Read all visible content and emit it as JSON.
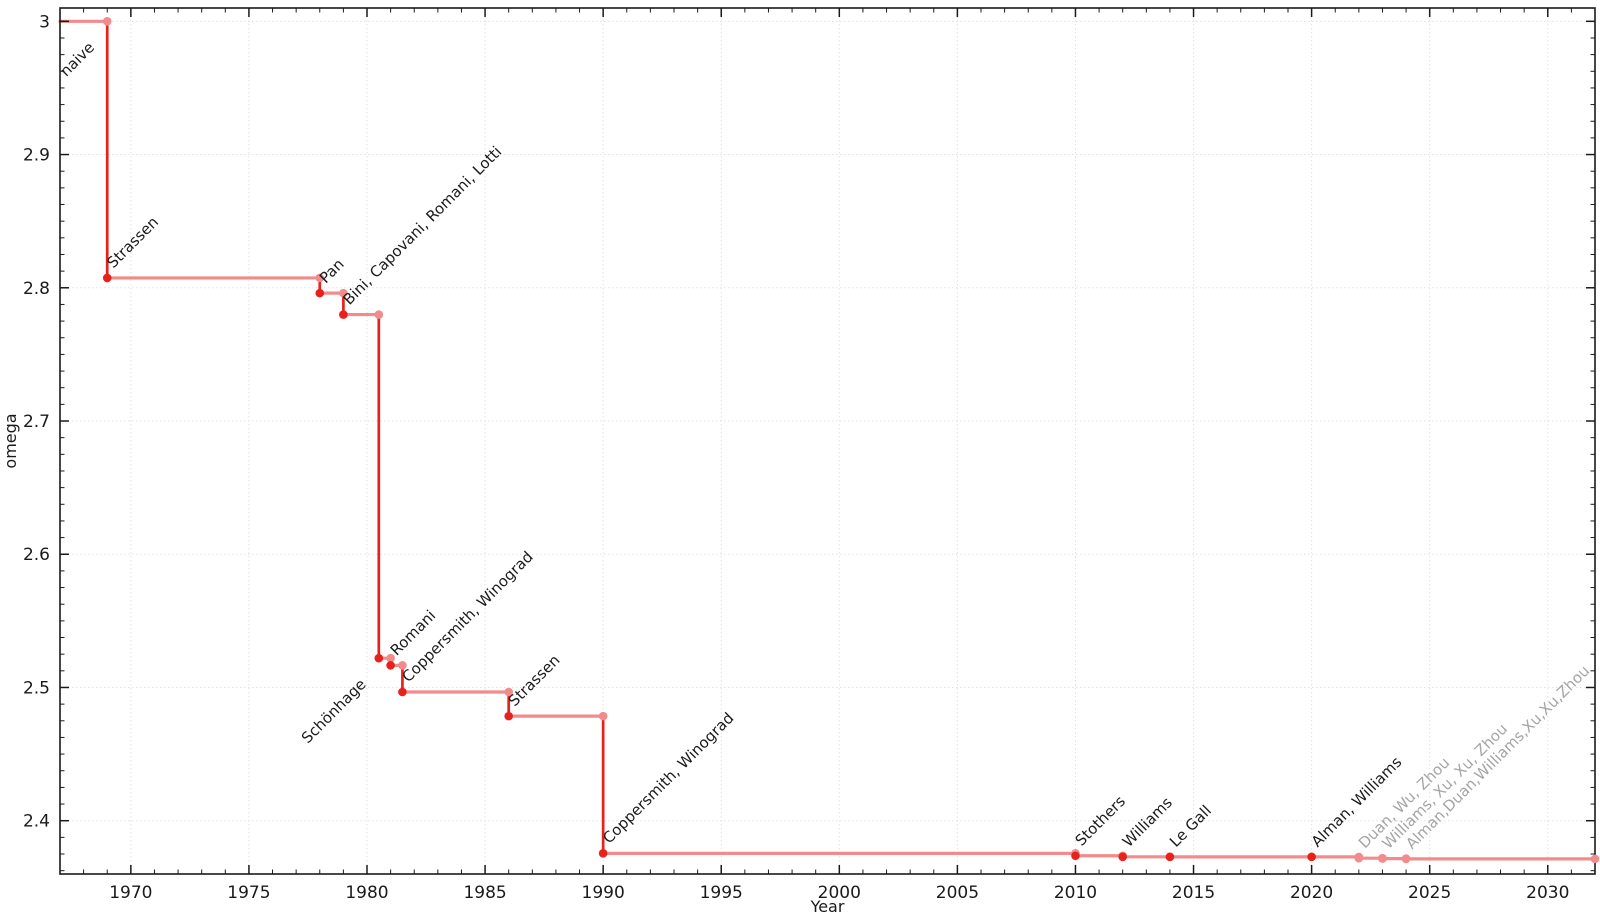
{
  "chart_data": {
    "type": "line",
    "subtype": "step-post",
    "title": "",
    "xlabel": "Year",
    "ylabel": "omega",
    "xlim": [
      1967,
      2032
    ],
    "ylim": [
      2.36,
      3.01
    ],
    "grid": true,
    "legend": "none",
    "x_axis": {
      "label": "Year",
      "tick_values": [
        1970,
        1975,
        1980,
        1985,
        1990,
        1995,
        2000,
        2005,
        2010,
        2015,
        2020,
        2025,
        2030
      ],
      "tick_labels": [
        "1970",
        "1975",
        "1980",
        "1985",
        "1990",
        "1995",
        "2000",
        "2005",
        "2010",
        "2015",
        "2020",
        "2025",
        "2030"
      ],
      "minor_tick_step": 1
    },
    "y_axis": {
      "label": "omega",
      "tick_values": [
        2.4,
        2.5,
        2.6,
        2.7,
        2.8,
        2.9,
        3.0
      ],
      "tick_labels": [
        "2.4",
        "2.5",
        "2.6",
        "2.7",
        "2.8",
        "2.9",
        "3"
      ],
      "minor_tick_step": 0.0125
    },
    "series_start": {
      "year": 1967,
      "omega": 3.0,
      "label": "naive",
      "label_anchor_year": 1969,
      "label_side": "below"
    },
    "series_end_year": 2032,
    "points": [
      {
        "year": 1969,
        "omega": 2.8074,
        "label": "Strassen",
        "label_side": "above",
        "emphasis": true
      },
      {
        "year": 1978,
        "omega": 2.796,
        "label": "Pan",
        "label_side": "above",
        "emphasis": true
      },
      {
        "year": 1979,
        "omega": 2.7799,
        "label": "Bini, Capovani, Romani, Lotti",
        "label_side": "above",
        "emphasis": true
      },
      {
        "year": 1980.5,
        "omega": 2.522,
        "label": "Schönhage",
        "label_side": "below",
        "emphasis": true
      },
      {
        "year": 1981,
        "omega": 2.5166,
        "label": "Romani",
        "label_side": "above",
        "emphasis": true
      },
      {
        "year": 1981.5,
        "omega": 2.4966,
        "label": "Coppersmith, Winograd",
        "label_side": "above",
        "emphasis": true
      },
      {
        "year": 1986,
        "omega": 2.4785,
        "label": "Strassen",
        "label_side": "above",
        "emphasis": true
      },
      {
        "year": 1990,
        "omega": 2.3755,
        "label": "Coppersmith, Winograd",
        "label_side": "above",
        "emphasis": true
      },
      {
        "year": 2010,
        "omega": 2.3737,
        "label": "Stothers",
        "label_side": "above",
        "emphasis": true
      },
      {
        "year": 2012,
        "omega": 2.3729,
        "label": "Williams",
        "label_side": "above",
        "emphasis": true
      },
      {
        "year": 2014,
        "omega": 2.37287,
        "label": "Le Gall",
        "label_side": "above",
        "emphasis": true
      },
      {
        "year": 2020,
        "omega": 2.37286,
        "label": "Alman, Williams",
        "label_side": "above",
        "emphasis": true
      },
      {
        "year": 2022,
        "omega": 2.37187,
        "label": "Duan, Wu, Zhou",
        "label_side": "above",
        "emphasis": false
      },
      {
        "year": 2023,
        "omega": 2.37155,
        "label": "Williams, Xu, Xu, Zhou",
        "label_side": "above",
        "emphasis": false
      },
      {
        "year": 2024,
        "omega": 2.37134,
        "label": "Alman,Duan,Williams,Xu,Xu,Zhou",
        "label_side": "above",
        "emphasis": false
      }
    ],
    "colors": {
      "step_line": "#f28b8b",
      "drop_line": "#e8211b",
      "point_emphasis": "#e8211b",
      "point_light": "#f28b8b",
      "label_emphasis": "#1c1c1c",
      "label_light": "#a5a5a5",
      "grid": "#e2e2e2",
      "axis": "#1a1a1a"
    }
  }
}
